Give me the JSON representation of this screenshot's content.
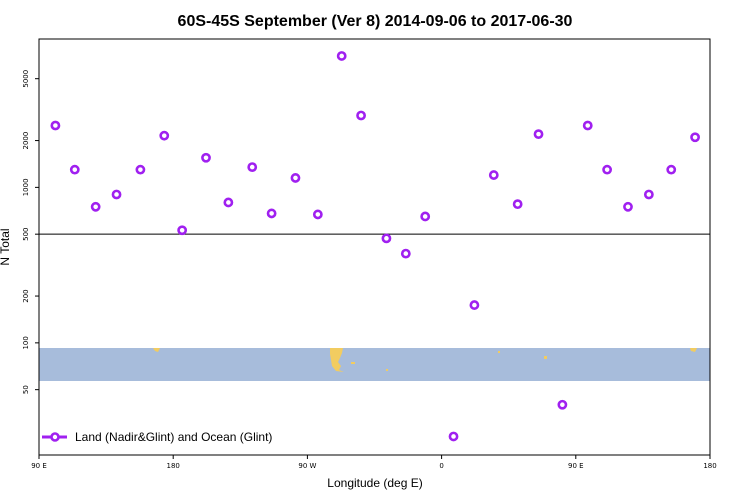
{
  "chart_data": {
    "type": "scatter",
    "title": "60S-45S September (Ver 8)   2014-09-06 to 2017-06-30",
    "xlabel": "Longitude (deg E)",
    "ylabel": "N Total",
    "x_scale": "linear",
    "y_scale": "log",
    "xlim": [
      90,
      540
    ],
    "ylim": [
      19,
      9000
    ],
    "x_ticks": [
      {
        "value": 90,
        "label": "90 E"
      },
      {
        "value": 180,
        "label": "180"
      },
      {
        "value": 270,
        "label": "90 W"
      },
      {
        "value": 360,
        "label": "0"
      },
      {
        "value": 450,
        "label": "90 E"
      },
      {
        "value": 540,
        "label": "180"
      }
    ],
    "y_ticks": [
      50,
      100,
      200,
      500,
      1000,
      2000,
      5000
    ],
    "reference_line_y": 500,
    "grid": false,
    "legend_position": "bottom-left",
    "marker_color": "#a020f0",
    "series": [
      {
        "name": "Land (Nadir&Glint) and Ocean (Glint)",
        "points": [
          {
            "x": 101,
            "y": 2500
          },
          {
            "x": 114,
            "y": 1300
          },
          {
            "x": 128,
            "y": 750
          },
          {
            "x": 142,
            "y": 900
          },
          {
            "x": 158,
            "y": 1300
          },
          {
            "x": 174,
            "y": 2150
          },
          {
            "x": 186,
            "y": 530
          },
          {
            "x": 202,
            "y": 1550
          },
          {
            "x": 217,
            "y": 800
          },
          {
            "x": 233,
            "y": 1350
          },
          {
            "x": 246,
            "y": 680
          },
          {
            "x": 262,
            "y": 1150
          },
          {
            "x": 277,
            "y": 670
          },
          {
            "x": 293,
            "y": 7000
          },
          {
            "x": 306,
            "y": 2900
          },
          {
            "x": 323,
            "y": 470
          },
          {
            "x": 336,
            "y": 375
          },
          {
            "x": 349,
            "y": 650
          },
          {
            "x": 368,
            "y": 25
          },
          {
            "x": 382,
            "y": 175
          },
          {
            "x": 395,
            "y": 1200
          },
          {
            "x": 411,
            "y": 780
          },
          {
            "x": 425,
            "y": 2200
          },
          {
            "x": 441,
            "y": 40
          },
          {
            "x": 458,
            "y": 2500
          },
          {
            "x": 471,
            "y": 1300
          },
          {
            "x": 485,
            "y": 750
          },
          {
            "x": 499,
            "y": 900
          },
          {
            "x": 514,
            "y": 1300
          },
          {
            "x": 530,
            "y": 2100
          }
        ]
      }
    ]
  }
}
